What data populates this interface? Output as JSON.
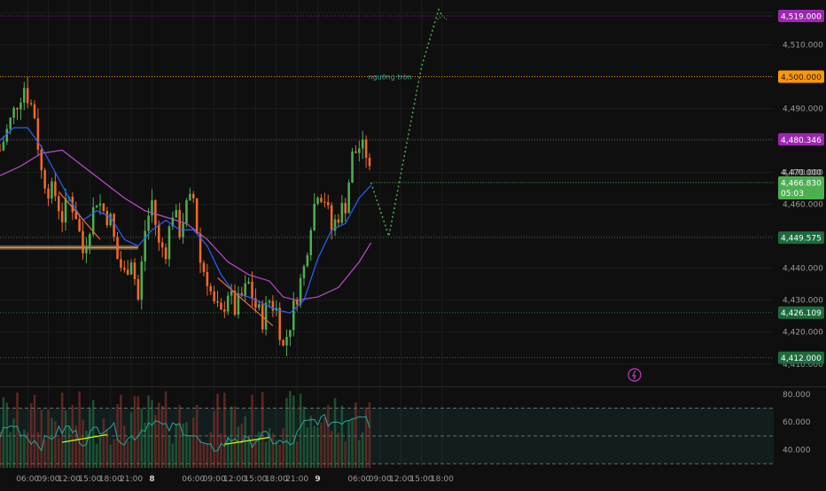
{
  "chart_data": [
    {
      "type": "candlestick",
      "title": "",
      "y_axis": {
        "min": 4403,
        "max": 4524,
        "ticks": [
          4410,
          4420,
          4430,
          4440,
          4450,
          4460,
          4470,
          4480,
          4490,
          4500,
          4510,
          4520
        ],
        "tick_labels": [
          "4,410.000",
          "4,420.000",
          "4,430.000",
          "4,440.000",
          "4,450.000",
          "4,460.000",
          "4,470.000",
          "4,480.000",
          "4,490.000",
          "4,500.000",
          "4,510.000",
          "4,520.000"
        ]
      },
      "x_axis": {
        "start_hour": 2,
        "end_hour": 114,
        "labels": [
          {
            "text": "06:00",
            "hour": 6
          },
          {
            "text": "09:00",
            "hour": 9
          },
          {
            "text": "12:00",
            "hour": 12
          },
          {
            "text": "15:00",
            "hour": 15
          },
          {
            "text": "18:00",
            "hour": 18
          },
          {
            "text": "21:00",
            "hour": 21
          },
          {
            "text": "8",
            "hour": 24,
            "bold": true
          },
          {
            "text": "06:00",
            "hour": 30
          },
          {
            "text": "09:00",
            "hour": 33
          },
          {
            "text": "12:00",
            "hour": 36
          },
          {
            "text": "15:00",
            "hour": 39
          },
          {
            "text": "18:00",
            "hour": 42
          },
          {
            "text": "21:00",
            "hour": 45
          },
          {
            "text": "9",
            "hour": 48,
            "bold": true
          },
          {
            "text": "06:00",
            "hour": 54
          },
          {
            "text": "09:00",
            "hour": 57
          },
          {
            "text": "12:00",
            "hour": 60
          },
          {
            "text": "15:00",
            "hour": 63
          },
          {
            "text": "18:00",
            "hour": 66
          }
        ]
      },
      "price_path": [
        [
          2,
          4477
        ],
        [
          3,
          4483
        ],
        [
          4.5,
          4492
        ],
        [
          5.5,
          4497
        ],
        [
          6,
          4494
        ],
        [
          7,
          4488
        ],
        [
          8,
          4470
        ],
        [
          9,
          4465
        ],
        [
          10,
          4463
        ],
        [
          11,
          4456
        ],
        [
          12,
          4462
        ],
        [
          13,
          4457
        ],
        [
          14,
          4445
        ],
        [
          15,
          4454
        ],
        [
          16,
          4462
        ],
        [
          17,
          4458
        ],
        [
          18,
          4455
        ],
        [
          19,
          4443
        ],
        [
          20,
          4438
        ],
        [
          21,
          4444
        ],
        [
          22,
          4430
        ],
        [
          23,
          4452
        ],
        [
          24,
          4461
        ],
        [
          25,
          4447
        ],
        [
          26,
          4446
        ],
        [
          27,
          4458
        ],
        [
          28,
          4452
        ],
        [
          29,
          4459
        ],
        [
          30,
          4462
        ],
        [
          31,
          4442
        ],
        [
          32,
          4437
        ],
        [
          33,
          4428
        ],
        [
          34,
          4425
        ],
        [
          35,
          4433
        ],
        [
          36,
          4427
        ],
        [
          37,
          4431
        ],
        [
          38,
          4435
        ],
        [
          39,
          4428
        ],
        [
          40,
          4424
        ],
        [
          41,
          4430
        ],
        [
          42,
          4427
        ],
        [
          43,
          4415
        ],
        [
          44,
          4423
        ],
        [
          45,
          4432
        ],
        [
          46,
          4440
        ],
        [
          47,
          4455
        ],
        [
          48,
          4465
        ],
        [
          49,
          4462
        ],
        [
          50,
          4452
        ],
        [
          51,
          4457
        ],
        [
          52,
          4460
        ],
        [
          53,
          4475
        ],
        [
          54,
          4478
        ],
        [
          55,
          4476
        ],
        [
          55.7,
          4466.8
        ]
      ],
      "ma_fast": [
        [
          2,
          4480
        ],
        [
          4,
          4484
        ],
        [
          6,
          4484
        ],
        [
          8,
          4478
        ],
        [
          10,
          4470
        ],
        [
          12,
          4462
        ],
        [
          14,
          4455
        ],
        [
          16,
          4458
        ],
        [
          18,
          4456
        ],
        [
          20,
          4449
        ],
        [
          22,
          4447
        ],
        [
          24,
          4452
        ],
        [
          26,
          4455
        ],
        [
          28,
          4452
        ],
        [
          30,
          4452
        ],
        [
          32,
          4447
        ],
        [
          34,
          4438
        ],
        [
          36,
          4432
        ],
        [
          38,
          4431
        ],
        [
          40,
          4429
        ],
        [
          42,
          4427
        ],
        [
          44,
          4426
        ],
        [
          46,
          4430
        ],
        [
          48,
          4443
        ],
        [
          50,
          4452
        ],
        [
          52,
          4454
        ],
        [
          54,
          4462
        ],
        [
          55.7,
          4466
        ]
      ],
      "ma_slow": [
        [
          2,
          4469
        ],
        [
          5,
          4472
        ],
        [
          8,
          4476
        ],
        [
          11,
          4477
        ],
        [
          14,
          4472
        ],
        [
          17,
          4467
        ],
        [
          20,
          4462
        ],
        [
          23,
          4458
        ],
        [
          26,
          4456
        ],
        [
          29,
          4454
        ],
        [
          32,
          4449
        ],
        [
          35,
          4442
        ],
        [
          38,
          4438
        ],
        [
          41,
          4436
        ],
        [
          43,
          4431
        ],
        [
          45,
          4430
        ],
        [
          48,
          4431
        ],
        [
          51,
          4434
        ],
        [
          54,
          4442
        ],
        [
          55.7,
          4448
        ]
      ],
      "forecast": [
        [
          55.7,
          4466.8
        ],
        [
          58.3,
          4450
        ],
        [
          63,
          4503
        ],
        [
          65.5,
          4521
        ],
        [
          66,
          4519
        ]
      ],
      "horizontal_levels": [
        {
          "price": 4519.0,
          "label": "4,519.000",
          "color": "#9c27b0",
          "line_color": "#9c27b0"
        },
        {
          "price": 4500.0,
          "label": "4,500.000",
          "color": "#ff9800",
          "line_color": "#ff9800"
        },
        {
          "price": 4480.346,
          "label": "4,480.346",
          "color": "#9c27b0",
          "line_color": "#9c27b0"
        },
        {
          "price": 4449.575,
          "label": "4,449.575",
          "color": "#1b6b3d",
          "line_color": "#2e7d46"
        },
        {
          "price": 4426.109,
          "label": "4,426.109",
          "color": "#1b6b3d",
          "line_color": "#2e7d46"
        },
        {
          "price": 4412.0,
          "label": "4,412.000",
          "color": "#1b6b3d",
          "line_color": "#2e7d46"
        }
      ],
      "level_annotation": "ngưỡng tròn",
      "current_price": {
        "price": 4466.83,
        "label": "4,466.830",
        "countdown": "05:03",
        "color": "#4caf50"
      },
      "overlap_label": {
        "price": 4470,
        "label": "4,470.000"
      },
      "support_band": {
        "price": 4446.5,
        "hour_from": 2,
        "hour_to": 22
      },
      "trendlines": [
        {
          "from": [
            10.5,
            4464
          ],
          "to": [
            16.5,
            4449
          ],
          "color": "#f0692b"
        },
        {
          "from": [
            33.5,
            4437
          ],
          "to": [
            41.5,
            4422
          ],
          "color": "#f0692b"
        }
      ],
      "colors": {
        "bull": "#4caf50",
        "bear": "#f0692b",
        "ma_fast": "#2962ff",
        "ma_slow": "#b84fc8",
        "forecast": "#4caf50"
      }
    },
    {
      "type": "oscillator",
      "y_axis": {
        "ticks": [
          40,
          60,
          80
        ],
        "tick_labels": [
          "40.000",
          "60.000",
          "80.000"
        ],
        "reference_lines": [
          30,
          50,
          70
        ],
        "min": 27,
        "max": 85
      },
      "rsi_path": [
        [
          2,
          52
        ],
        [
          4,
          58
        ],
        [
          6,
          49
        ],
        [
          8,
          44
        ],
        [
          10,
          52
        ],
        [
          12,
          56
        ],
        [
          14,
          46
        ],
        [
          16,
          55
        ],
        [
          18,
          58
        ],
        [
          20,
          46
        ],
        [
          22,
          52
        ],
        [
          24,
          62
        ],
        [
          26,
          55
        ],
        [
          28,
          57
        ],
        [
          30,
          50
        ],
        [
          32,
          40
        ],
        [
          34,
          43
        ],
        [
          36,
          49
        ],
        [
          38,
          45
        ],
        [
          40,
          50
        ],
        [
          42,
          46
        ],
        [
          44,
          43
        ],
        [
          46,
          58
        ],
        [
          48,
          62
        ],
        [
          50,
          60
        ],
        [
          52,
          62
        ],
        [
          54,
          67
        ],
        [
          55,
          66
        ],
        [
          55.7,
          52
        ]
      ],
      "divergence_lines": [
        {
          "from": [
            11,
            45.5
          ],
          "to": [
            17.5,
            51
          ],
          "color": "#c6ff00"
        },
        {
          "from": [
            34.5,
            44
          ],
          "to": [
            41,
            49
          ],
          "color": "#c6ff00"
        }
      ],
      "colors": {
        "line": "#26a69a",
        "zone": "rgba(38,166,154,0.10)",
        "vol_up": "#1f5a36",
        "vol_down": "#6b2a24"
      }
    }
  ]
}
